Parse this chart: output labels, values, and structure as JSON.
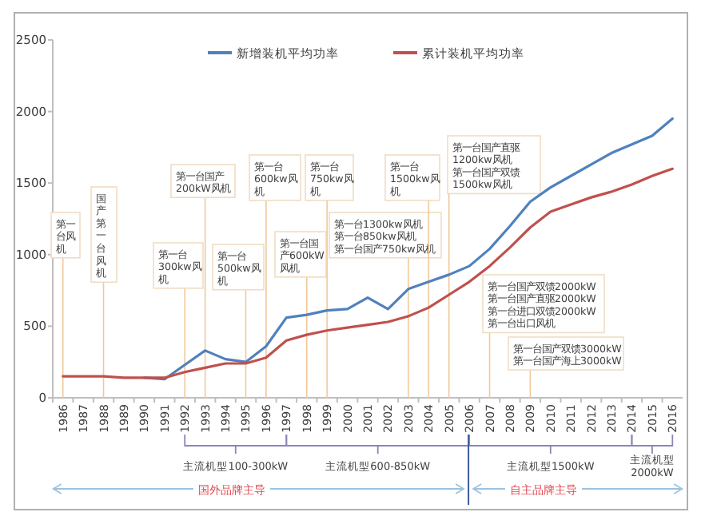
{
  "chart_data": {
    "type": "line",
    "legend": "top",
    "categories": [
      "1986",
      "1987",
      "1988",
      "1989",
      "1990",
      "1991",
      "1992",
      "1993",
      "1994",
      "1995",
      "1996",
      "1997",
      "1998",
      "1999",
      "2000",
      "2001",
      "2002",
      "2003",
      "2004",
      "2005",
      "2006",
      "2007",
      "2008",
      "2009",
      "2010",
      "2011",
      "2012",
      "2013",
      "2014",
      "2015",
      "2016"
    ],
    "series": [
      {
        "name": "新增装机平均功率",
        "color": "#4f81bd",
        "values": [
          null,
          null,
          null,
          null,
          140,
          130,
          230,
          330,
          270,
          250,
          360,
          560,
          580,
          610,
          620,
          700,
          620,
          760,
          810,
          860,
          920,
          1040,
          1200,
          1370,
          1470,
          1550,
          1630,
          1710,
          1770,
          1830,
          1950
        ]
      },
      {
        "name": "累计装机平均功率",
        "color": "#c0504d",
        "values": [
          150,
          150,
          150,
          140,
          140,
          140,
          180,
          210,
          240,
          240,
          280,
          400,
          440,
          470,
          490,
          510,
          530,
          570,
          630,
          720,
          810,
          920,
          1050,
          1190,
          1300,
          1350,
          1400,
          1440,
          1490,
          1550,
          1600
        ]
      }
    ],
    "ylim": [
      0,
      2500
    ],
    "yticks": [
      0,
      500,
      1000,
      1500,
      2000,
      2500
    ],
    "ref_lines": [
      {
        "axis": "x",
        "value": "1986",
        "label": "第一台风机",
        "color": "#f2c89a"
      },
      {
        "axis": "x",
        "value": "1988",
        "label": "国产第一台风机",
        "color": "#f2c89a"
      },
      {
        "axis": "x",
        "value": "1993",
        "label": "第一台国产200kW风机",
        "color": "#f2c89a"
      },
      {
        "axis": "x",
        "value": "1992",
        "label": "第一台300kw风机",
        "color": "#f2c89a"
      },
      {
        "axis": "x",
        "value": "1995",
        "label": "第一台500kw风机",
        "color": "#f2c89a"
      },
      {
        "axis": "x",
        "value": "1996",
        "label": "第一台600kw风机",
        "color": "#f2c89a"
      },
      {
        "axis": "x",
        "value": "1998",
        "label": "第一台国产600kW风机",
        "color": "#f2c89a"
      },
      {
        "axis": "x",
        "value": "1999",
        "label": "第一台750kw风机",
        "color": "#f2c89a"
      },
      {
        "axis": "x",
        "value": "2003",
        "label": "第一台1300kw风机第一台850kw风机第一台国产750kw风机",
        "color": "#f2c89a"
      },
      {
        "axis": "x",
        "value": "2004",
        "label": "第一台1500kw风机",
        "color": "#f2c89a"
      },
      {
        "axis": "x",
        "value": "2005",
        "label": "第一台国产直驱1200kw风机第一台国产双馈1500kw风机",
        "color": "#f2c89a"
      },
      {
        "axis": "x",
        "value": "2007",
        "label": "第一台国产双馈2000kW第一台国产直驱2000kW第一台进口双馈2000kW第一台出口风机",
        "color": "#f2c89a"
      },
      {
        "axis": "x",
        "value": "2009",
        "label": "第一台国产双馈3000kW第一台国产海上3000kW",
        "color": "#f2c89a"
      }
    ],
    "annotations": [
      "主流机型100-300kW",
      "主流机型600-850kW",
      "主流机型1500kW",
      "主流机型2000kW",
      "国外品牌主导",
      "自主品牌主导"
    ]
  }
}
